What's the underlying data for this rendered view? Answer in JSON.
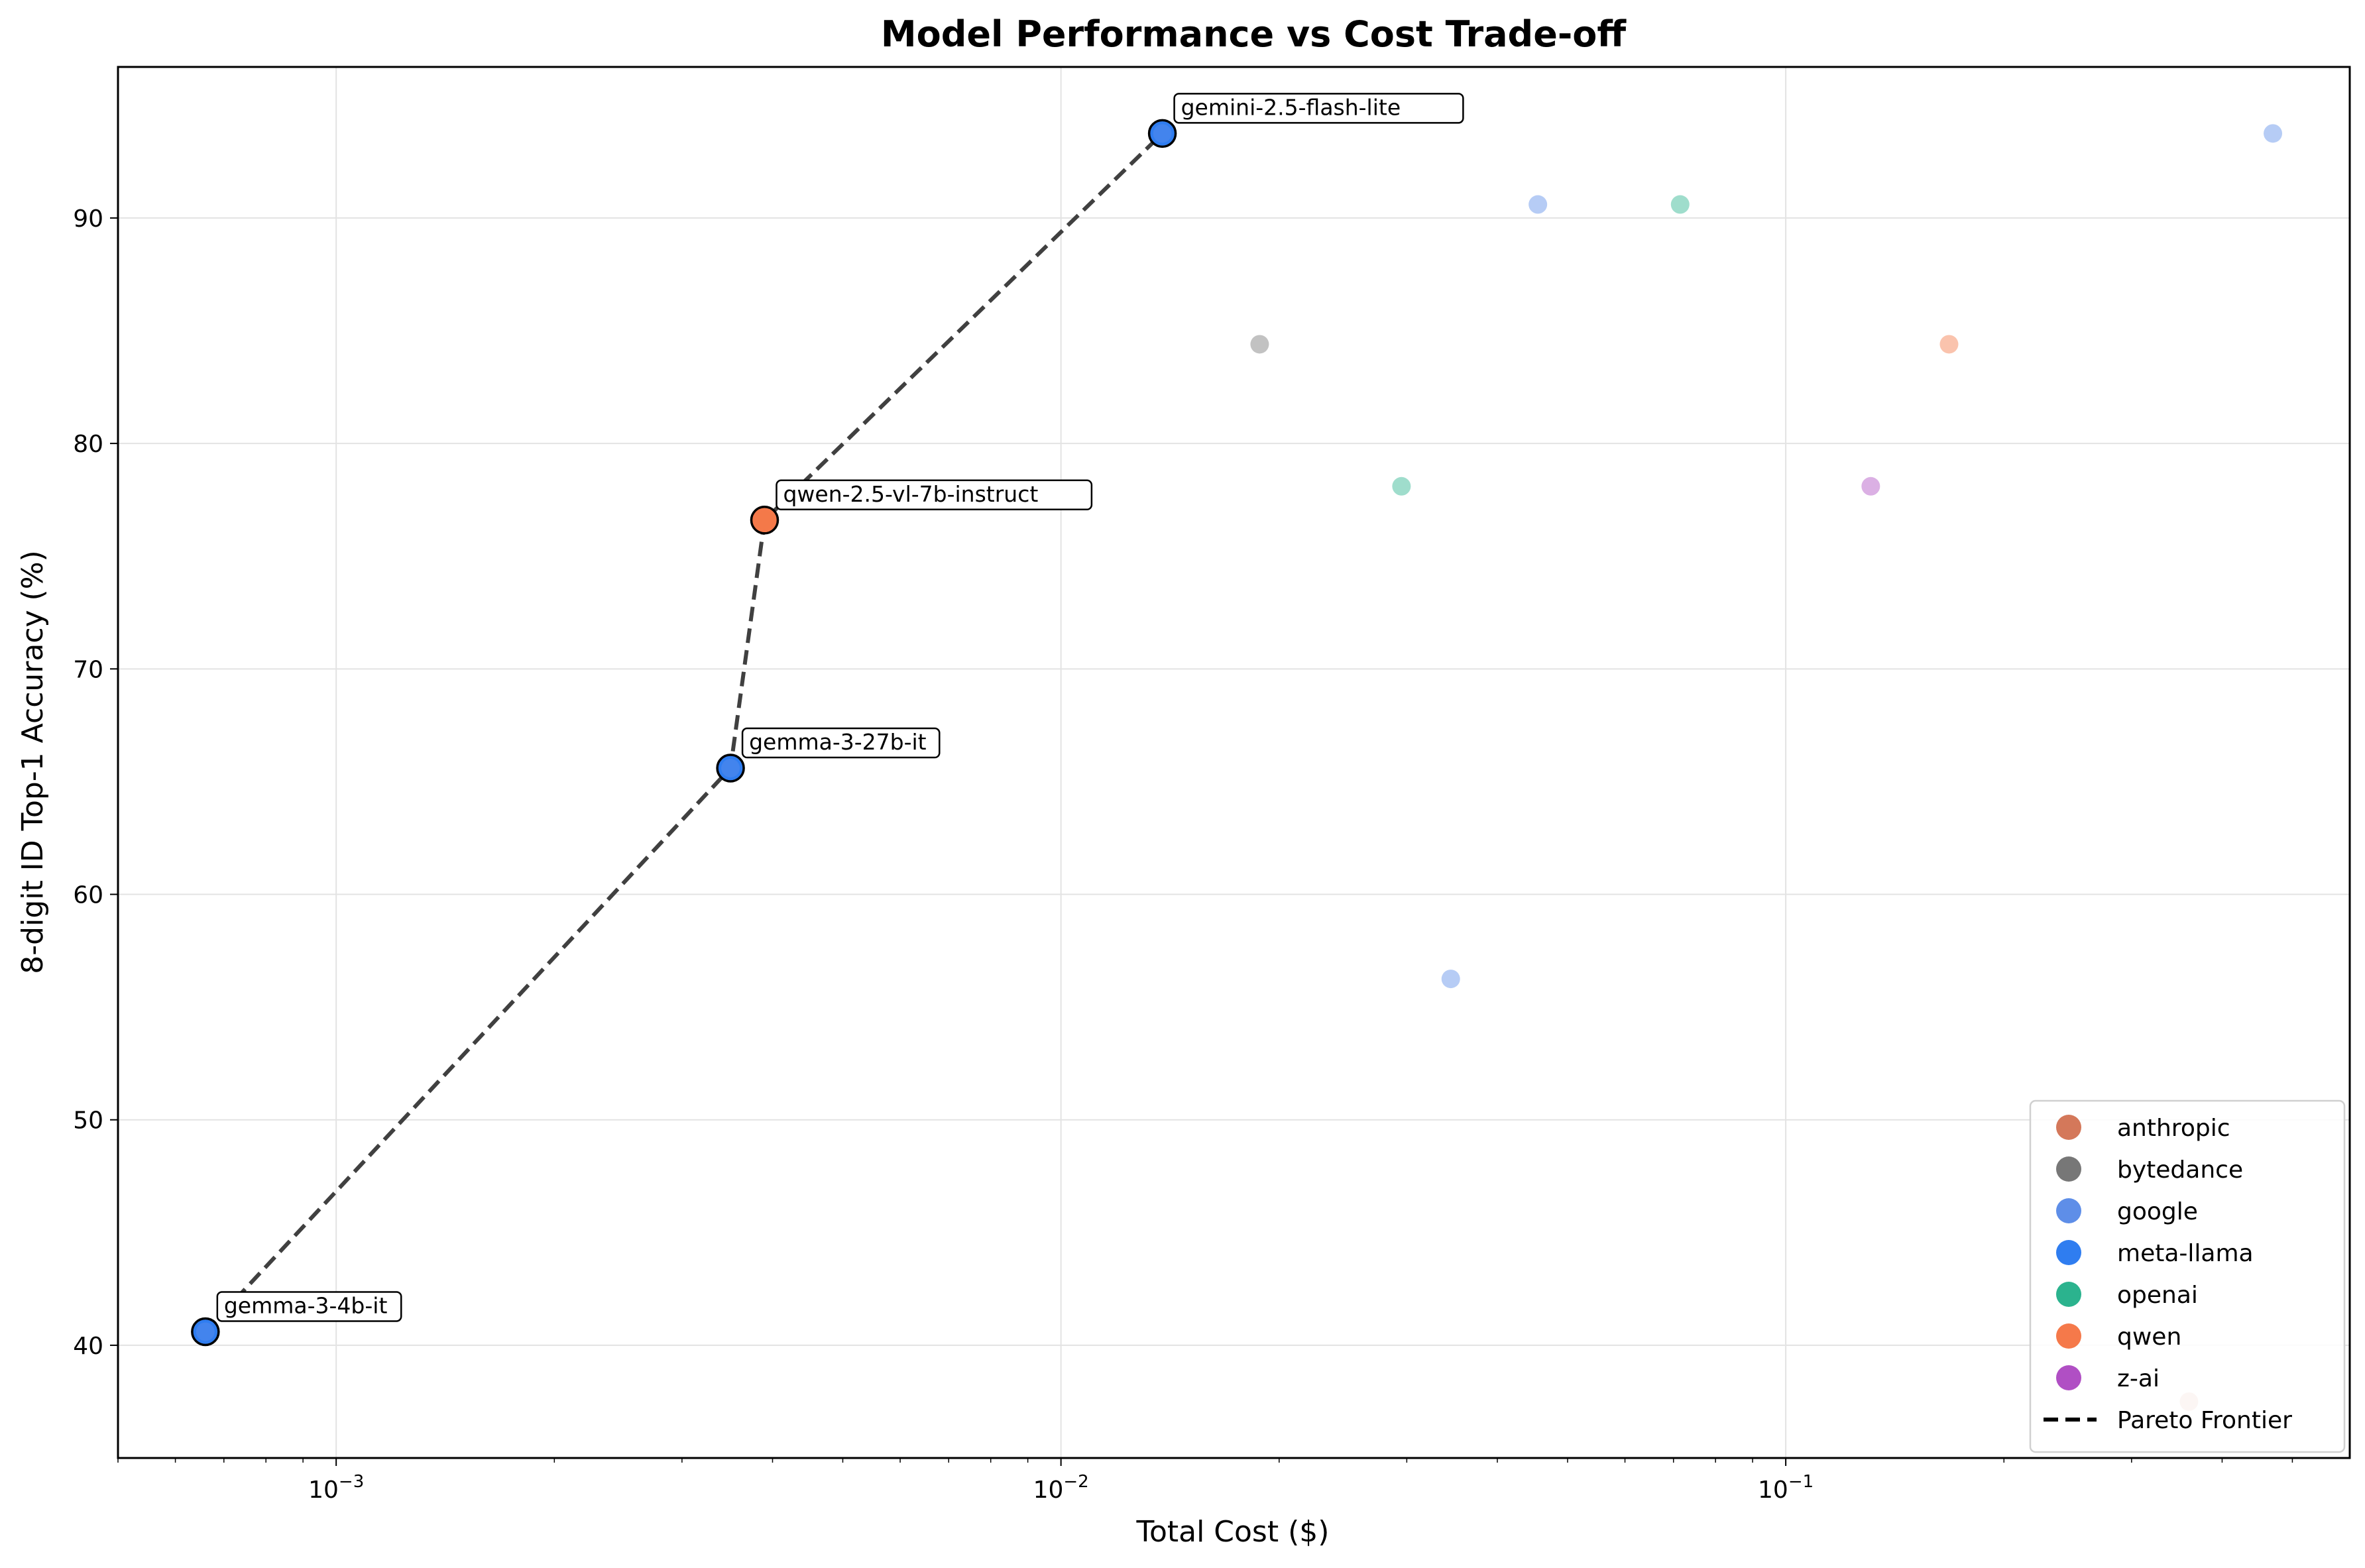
{
  "chart_data": {
    "type": "scatter",
    "title": "Model Performance vs Cost Trade-off",
    "xlabel": "Total Cost ($)",
    "ylabel": "8-digit ID Top-1 Accuracy (%)",
    "xscale": "log",
    "xlim": [
      0.0005,
      0.6
    ],
    "ylim": [
      35,
      96.7
    ],
    "xticks": [
      {
        "value": 0.001,
        "base": "10",
        "exp": "−3"
      },
      {
        "value": 0.01,
        "base": "10",
        "exp": "−2"
      },
      {
        "value": 0.1,
        "base": "10",
        "exp": "−1"
      }
    ],
    "yticks": [
      40,
      50,
      60,
      70,
      80,
      90
    ],
    "grid": true,
    "legend_position": "lower-right",
    "series": [
      {
        "name": "anthropic",
        "color": "#d4785a",
        "points": [
          {
            "x": 0.36,
            "y": 37.5
          }
        ]
      },
      {
        "name": "bytedance",
        "color": "#777777",
        "points": [
          {
            "x": 0.0188,
            "y": 84.4
          }
        ]
      },
      {
        "name": "google",
        "color": "#5e8ee8",
        "points": [
          {
            "x": 0.0455,
            "y": 90.6
          },
          {
            "x": 0.0345,
            "y": 56.25
          },
          {
            "x": 0.47,
            "y": 93.75
          },
          {
            "x": 0.00066,
            "y": 40.6
          },
          {
            "x": 0.0035,
            "y": 65.6
          },
          {
            "x": 0.0138,
            "y": 93.75
          }
        ]
      },
      {
        "name": "meta-llama",
        "color": "#2f7df0",
        "points": []
      },
      {
        "name": "openai",
        "color": "#2bb38e",
        "points": [
          {
            "x": 0.0715,
            "y": 90.6
          },
          {
            "x": 0.0295,
            "y": 78.1
          }
        ]
      },
      {
        "name": "qwen",
        "color": "#f5794a",
        "points": [
          {
            "x": 0.168,
            "y": 84.4
          },
          {
            "x": 0.0039,
            "y": 76.6
          }
        ]
      },
      {
        "name": "z-ai",
        "color": "#b04fc4",
        "points": [
          {
            "x": 0.131,
            "y": 78.1
          }
        ]
      }
    ],
    "pareto_frontier": {
      "name": "Pareto Frontier",
      "points": [
        {
          "x": 0.00066,
          "y": 40.6,
          "label": "gemma-3-4b-it",
          "color": "#2f7df0"
        },
        {
          "x": 0.0035,
          "y": 65.6,
          "label": "gemma-3-27b-it",
          "color": "#2f7df0"
        },
        {
          "x": 0.0039,
          "y": 76.6,
          "label": "qwen-2.5-vl-7b-instruct",
          "color": "#f5794a"
        },
        {
          "x": 0.0138,
          "y": 93.75,
          "label": "gemini-2.5-flash-lite",
          "color": "#2f7df0"
        }
      ]
    }
  }
}
